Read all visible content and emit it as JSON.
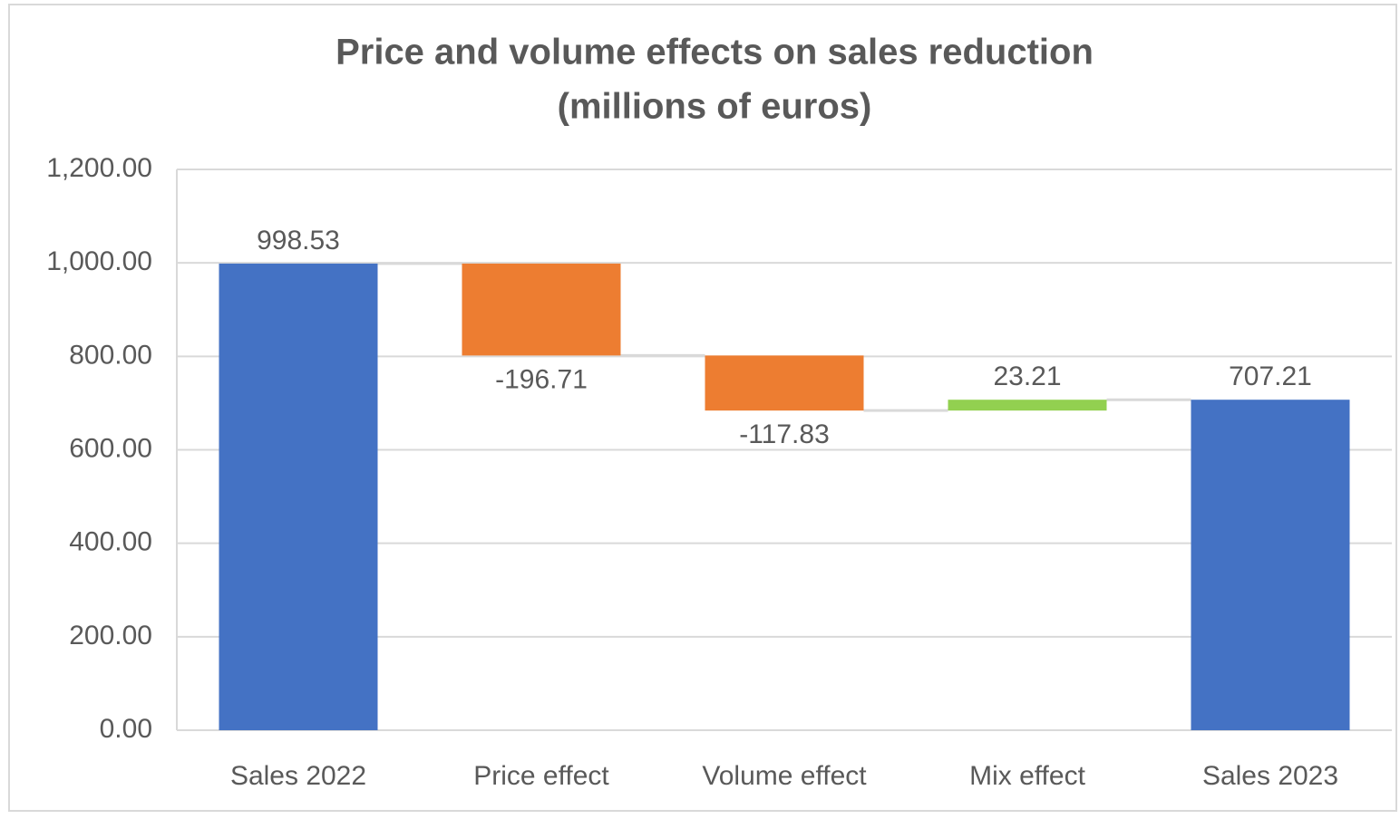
{
  "chart_data": {
    "type": "waterfall",
    "title": "Price and volume effects on sales reduction",
    "subtitle": "(millions of euros)",
    "categories": [
      "Sales 2022",
      "Price effect",
      "Volume effect",
      "Mix effect",
      "Sales 2023"
    ],
    "values": [
      998.53,
      -196.71,
      -117.83,
      23.21,
      707.21
    ],
    "totals": [
      true,
      false,
      false,
      false,
      true
    ],
    "colors": [
      "#4472c4",
      "#ed7d31",
      "#ed7d31",
      "#92d050",
      "#4472c4"
    ],
    "ylim": [
      0,
      1200
    ],
    "yticks": [
      {
        "value": 0,
        "label": "0.00"
      },
      {
        "value": 200,
        "label": "200.00"
      },
      {
        "value": 400,
        "label": "400.00"
      },
      {
        "value": 600,
        "label": "600.00"
      },
      {
        "value": 800,
        "label": "800.00"
      },
      {
        "value": 1000,
        "label": "1,000.00"
      },
      {
        "value": 1200,
        "label": "1,200.00"
      }
    ],
    "grid": true
  }
}
